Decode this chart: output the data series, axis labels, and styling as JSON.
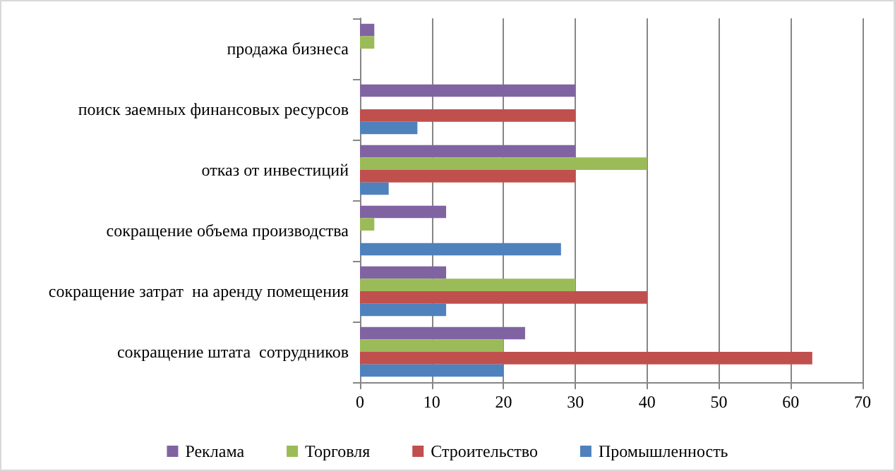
{
  "chart_data": {
    "type": "bar",
    "orientation": "horizontal",
    "categories": [
      "продажа бизнеса",
      "поиск заемных финансовых ресурсов",
      "отказ от инвестиций",
      "сокращение объема производства",
      "сокращение затрат  на аренду помещения",
      "сокращение штата  сотрудников"
    ],
    "series": [
      {
        "name": "Реклама",
        "color": "#8064a2",
        "values": [
          2,
          30,
          30,
          12,
          12,
          23
        ]
      },
      {
        "name": "Торговля",
        "color": "#9bbb59",
        "values": [
          2,
          0,
          40,
          2,
          30,
          20
        ]
      },
      {
        "name": "Строительство",
        "color": "#c0504d",
        "values": [
          0,
          30,
          30,
          0,
          40,
          63
        ]
      },
      {
        "name": "Промышленность",
        "color": "#4f81bd",
        "values": [
          0,
          8,
          4,
          28,
          12,
          20
        ]
      }
    ],
    "xlim": [
      0,
      70
    ],
    "xticks": [
      0,
      10,
      20,
      30,
      40,
      50,
      60,
      70
    ],
    "grid": "x",
    "legend": "bottom"
  }
}
